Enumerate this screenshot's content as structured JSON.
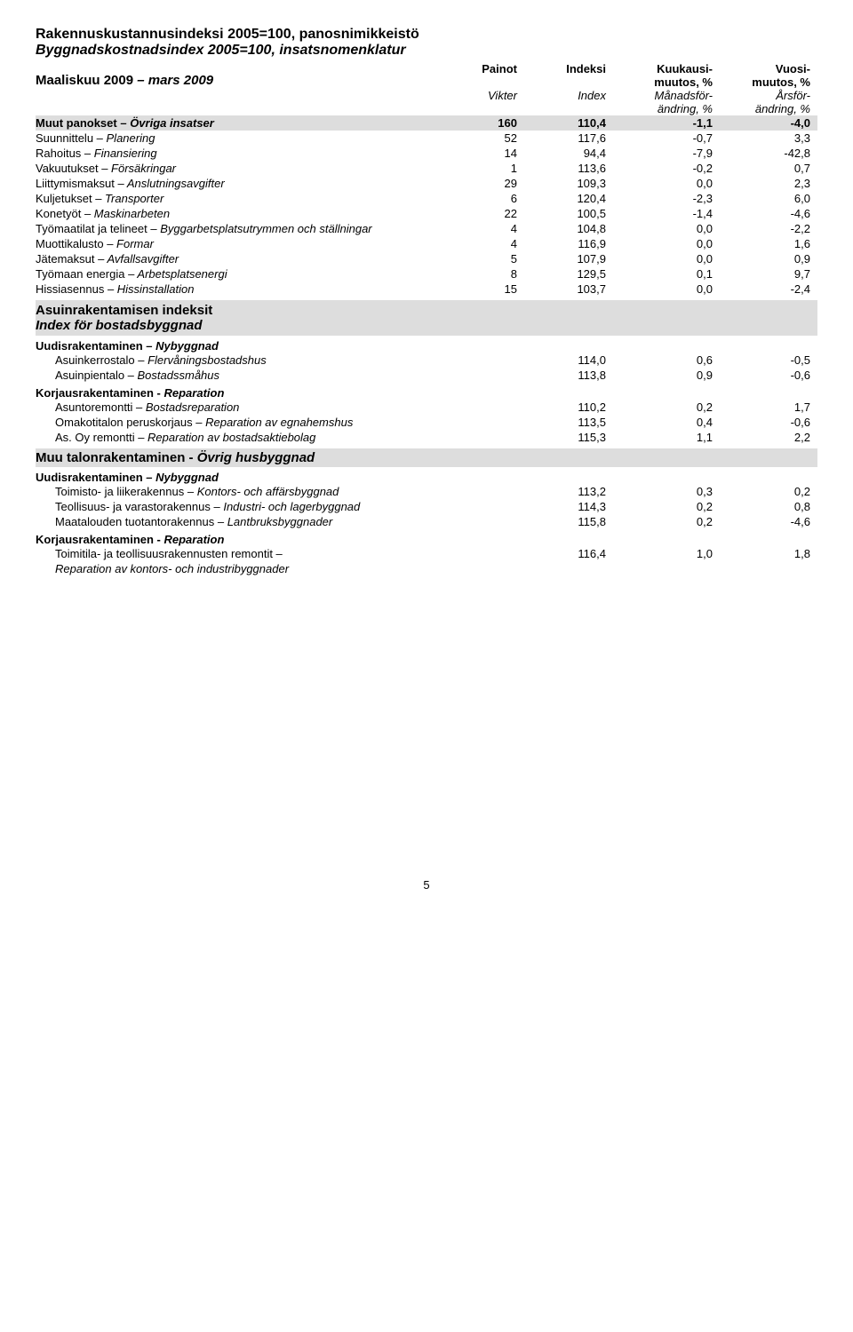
{
  "titles": {
    "line1": "Rakennuskustannusindeksi 2005=100, panosnimikkeistö",
    "line2": "Byggnadskostnadsindex 2005=100, insatsnomenklatur"
  },
  "header": {
    "period_bold": "Maaliskuu 2009",
    "period_italic": " – mars 2009",
    "col2a": "Painot",
    "col2b": "Vikter",
    "col3a": "Indeksi",
    "col3b": "Index",
    "col4a": "Kuukausi-",
    "col4b": "muutos, %",
    "col4c": "Månadsför-",
    "col4d": "ändring, %",
    "col5a": "Vuosi-",
    "col5b": "muutos, %",
    "col5c": "Årsför-",
    "col5d": "ändring, %"
  },
  "rows": [
    {
      "shade": true,
      "bold": true,
      "label_fi": "Muut panokset",
      "label_sv": " – Övriga insatser",
      "w": "160",
      "i": "110,4",
      "m": "-1,1",
      "y": "-4,0"
    },
    {
      "label_fi": "Suunnittelu",
      "label_sv": " – Planering",
      "w": "52",
      "i": "117,6",
      "m": "-0,7",
      "y": "3,3"
    },
    {
      "label_fi": "Rahoitus",
      "label_sv": " – Finansiering",
      "w": "14",
      "i": "94,4",
      "m": "-7,9",
      "y": "-42,8"
    },
    {
      "label_fi": "Vakuutukset",
      "label_sv": " – Försäkringar",
      "w": "1",
      "i": "113,6",
      "m": "-0,2",
      "y": "0,7"
    },
    {
      "label_fi": "Liittymismaksut",
      "label_sv": " – Anslutningsavgifter",
      "w": "29",
      "i": "109,3",
      "m": "0,0",
      "y": "2,3"
    },
    {
      "label_fi": "Kuljetukset",
      "label_sv": " – Transporter",
      "w": "6",
      "i": "120,4",
      "m": "-2,3",
      "y": "6,0"
    },
    {
      "label_fi": "Konetyöt",
      "label_sv": " – Maskinarbeten",
      "w": "22",
      "i": "100,5",
      "m": "-1,4",
      "y": "-4,6"
    },
    {
      "label_fi": "Työmaatilat ja telineet",
      "label_sv": " – Byggarbetsplatsutrymmen och ställningar",
      "w": "4",
      "i": "104,8",
      "m": "0,0",
      "y": "-2,2"
    },
    {
      "label_fi": "Muottikalusto",
      "label_sv": " – Formar",
      "w": "4",
      "i": "116,9",
      "m": "0,0",
      "y": "1,6"
    },
    {
      "label_fi": "Jätemaksut",
      "label_sv": " – Avfallsavgifter",
      "w": "5",
      "i": "107,9",
      "m": "0,0",
      "y": "0,9"
    },
    {
      "label_fi": "Työmaan energia",
      "label_sv": " – Arbetsplatsenergi",
      "w": "8",
      "i": "129,5",
      "m": "0,1",
      "y": "9,7"
    },
    {
      "label_fi": "Hissiasennus",
      "label_sv": " – Hissinstallation",
      "w": "15",
      "i": "103,7",
      "m": "0,0",
      "y": "-2,4"
    }
  ],
  "sec1": {
    "title_fi": "Asuinrakentamisen indeksit",
    "title_sv": "Index för bostadsbyggnad",
    "sub1_fi": "Uudisrakentaminen",
    "sub1_sv": " – Nybyggnad",
    "sub2_fi": "Korjausrakentaminen - ",
    "sub2_sv": "Reparation",
    "rows": [
      {
        "indent": true,
        "label_fi": "Asuinkerrostalo",
        "label_sv": " – Flervåningsbostadshus",
        "i": "114,0",
        "m": "0,6",
        "y": "-0,5"
      },
      {
        "indent": true,
        "label_fi": "Asuinpientalo",
        "label_sv": " – Bostadssmåhus",
        "i": "113,8",
        "m": "0,9",
        "y": "-0,6"
      }
    ],
    "rows2": [
      {
        "indent": true,
        "label_fi": "Asuntoremontti",
        "label_sv": " – Bostadsreparation",
        "i": "110,2",
        "m": "0,2",
        "y": "1,7"
      },
      {
        "indent": true,
        "label_fi": "Omakotitalon peruskorjaus",
        "label_sv": " – Reparation av egnahemshus",
        "i": "113,5",
        "m": "0,4",
        "y": "-0,6"
      },
      {
        "indent": true,
        "label_fi": "As. Oy remontti",
        "label_sv": " – Reparation av bostadsaktiebolag",
        "i": "115,3",
        "m": "1,1",
        "y": "2,2"
      }
    ]
  },
  "sec2": {
    "title_fi": "Muu talonrakentaminen - ",
    "title_sv": "Övrig husbyggnad",
    "sub1_fi": "Uudisrakentaminen",
    "sub1_sv": " – Nybyggnad",
    "sub2_fi": "Korjausrakentaminen - ",
    "sub2_sv": "Reparation",
    "rows": [
      {
        "indent": true,
        "label_fi": "Toimisto- ja liikerakennus",
        "label_sv": " – Kontors- och affärsbyggnad",
        "i": "113,2",
        "m": "0,3",
        "y": "0,2"
      },
      {
        "indent": true,
        "label_fi": "Teollisuus- ja varastorakennus",
        "label_sv": " – Industri- och lagerbyggnad",
        "i": "114,3",
        "m": "0,2",
        "y": "0,8"
      },
      {
        "indent": true,
        "label_fi": "Maatalouden tuotantorakennus",
        "label_sv": " – Lantbruksbyggnader",
        "i": "115,8",
        "m": "0,2",
        "y": "-4,6"
      }
    ],
    "rows2": [
      {
        "indent": true,
        "label_fi": "Toimitila- ja teollisuusrakennusten remontit –",
        "label_sv": "",
        "i": "116,4",
        "m": "1,0",
        "y": "1,8"
      },
      {
        "indent": true,
        "italic_only": true,
        "label_fi": "",
        "label_sv": "Reparation av kontors- och industribyggnader",
        "i": "",
        "m": "",
        "y": ""
      }
    ]
  },
  "page_number": "5"
}
